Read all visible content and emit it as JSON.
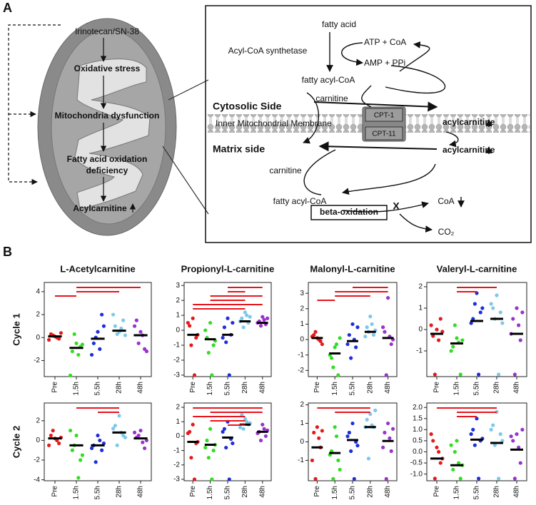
{
  "panel_labels": {
    "a": "A",
    "b": "B"
  },
  "diagram": {
    "left": {
      "drug": "Irinotecan/SN-38",
      "stress": "Oxidative stress",
      "dysfunction": "Mitochondria dysfunction",
      "fao_1": "Fatty acid oxidation",
      "fao_2": "deficiency",
      "acyl": "Acylcarnitine"
    },
    "right": {
      "fatty_acid": "fatty acid",
      "synthetase": "Acyl-CoA synthetase",
      "atp": "ATP + CoA",
      "amp": "AMP + PPi",
      "fatty_acyl_coa": "fatty acyl-CoA",
      "carnitine_top": "carnitine",
      "acylcarnitine_top": "acylcarnitine",
      "cytosolic": "Cytosolic Side",
      "membrane": "Inner Mitochondrial Membrane",
      "cpt1": "CPT-1",
      "cpt11": "CPT-11",
      "matrix": "Matrix side",
      "carnitine_bottom": "carnitine",
      "acylcarnitine_bottom": "acylcarnitine",
      "fatty_acyl_coa_2": "fatty acyl-CoA",
      "coa": "CoA",
      "beta": "beta-oxidation",
      "block": "X",
      "co2": "CO₂"
    }
  },
  "chart_data": [
    {
      "type": "strip",
      "title": "L-Acetylcarnitine",
      "ylabel": "Cycle 1",
      "categories": [
        "Pre",
        "1.5h",
        "5.5h",
        "28h",
        "48h"
      ],
      "colors": [
        "#e41a1c",
        "#33dd22",
        "#1f2fd8",
        "#7ec8ea",
        "#9933cc"
      ],
      "values": [
        [
          0.1,
          0.3,
          -0.1,
          0.2,
          0,
          -0.2,
          0.4
        ],
        [
          -0.5,
          -1.2,
          -0.8,
          0.3,
          -1.5,
          -3.3,
          -0.6
        ],
        [
          0.5,
          -0.5,
          2,
          0,
          -1,
          -1.5,
          1
        ],
        [
          0.5,
          1,
          1.5,
          0.3,
          0.8,
          2,
          0.2
        ],
        [
          0.5,
          1.5,
          -1,
          -0.5,
          0.2,
          1,
          -1.2
        ]
      ],
      "medians": [
        0.1,
        -0.9,
        -0.1,
        0.6,
        0.2
      ],
      "ylim": [
        -3.4,
        4.8
      ],
      "yticks": [
        -2,
        0,
        2,
        4
      ],
      "significance": [
        [
          "1.5h",
          "48h"
        ],
        [
          "1.5h",
          "28h"
        ],
        [
          "Pre",
          "1.5h"
        ]
      ],
      "significance_color": "#e8141c",
      "median_color": "#000000"
    },
    {
      "type": "strip",
      "title": "Propionyl-L-carnitine",
      "categories": [
        "Pre",
        "1.5h",
        "5.5h",
        "28h",
        "48h"
      ],
      "colors": [
        "#e41a1c",
        "#33dd22",
        "#1f2fd8",
        "#7ec8ea",
        "#9933cc"
      ],
      "values": [
        [
          0.8,
          0.3,
          -0.5,
          -1,
          -3,
          0.5,
          -0.3
        ],
        [
          0.5,
          -0.5,
          -1,
          -1.5,
          -3,
          0,
          -0.7
        ],
        [
          0.8,
          0.2,
          -0.3,
          -0.8,
          -3,
          -0.5,
          0.5
        ],
        [
          1.2,
          0.8,
          0.5,
          0.2,
          1,
          0.6,
          0.9
        ],
        [
          0.9,
          0.6,
          0.4,
          0.3,
          0.7,
          0.5,
          0.8
        ]
      ],
      "medians": [
        -0.3,
        -0.6,
        -0.3,
        0.6,
        0.5
      ],
      "ylim": [
        -3.1,
        3.2
      ],
      "yticks": [
        -3,
        -2,
        -1,
        0,
        1,
        2,
        3
      ],
      "significance": [
        [
          "5.5h",
          "48h"
        ],
        [
          "5.5h",
          "28h"
        ],
        [
          "1.5h",
          "48h"
        ],
        [
          "1.5h",
          "28h"
        ],
        [
          "Pre",
          "48h"
        ],
        [
          "Pre",
          "28h"
        ]
      ],
      "significance_color": "#e8141c",
      "median_color": "#000000"
    },
    {
      "type": "strip",
      "title": "Malonyl-L-carnitine",
      "categories": [
        "Pre",
        "1.5h",
        "5.5h",
        "28h",
        "48h"
      ],
      "colors": [
        "#e41a1c",
        "#33dd22",
        "#1f2fd8",
        "#7ec8ea",
        "#9933cc"
      ],
      "values": [
        [
          0.1,
          0.3,
          -0.1,
          0.5,
          0,
          0.2,
          -0.3
        ],
        [
          -0.5,
          -1.2,
          -2.3,
          -1.8,
          -0.3,
          -1,
          0.1
        ],
        [
          1,
          0.3,
          -0.5,
          -1.2,
          0,
          -0.3,
          0.8
        ],
        [
          1.5,
          0.8,
          0.3,
          0.5,
          1,
          0.2,
          0.6
        ],
        [
          2.7,
          0.5,
          -0.3,
          -2.3,
          0.2,
          0.8,
          0
        ]
      ],
      "medians": [
        0.1,
        -0.9,
        -0.1,
        0.5,
        0.1
      ],
      "ylim": [
        -2.4,
        3.7
      ],
      "yticks": [
        -2,
        -1,
        0,
        1,
        2,
        3
      ],
      "significance": [
        [
          "5.5h",
          "48h"
        ],
        [
          "1.5h",
          "48h"
        ],
        [
          "1.5h",
          "28h"
        ],
        [
          "Pre",
          "1.5h"
        ]
      ],
      "significance_color": "#e8141c",
      "median_color": "#000000"
    },
    {
      "type": "strip",
      "title": "Valeryl-L-carnitine",
      "categories": [
        "Pre",
        "1.5h",
        "5.5h",
        "28h",
        "48h"
      ],
      "colors": [
        "#e41a1c",
        "#33dd22",
        "#1f2fd8",
        "#7ec8ea",
        "#9933cc"
      ],
      "values": [
        [
          0,
          -0.3,
          0.5,
          -2.1,
          -0.5,
          0.2,
          -0.1
        ],
        [
          -0.4,
          -0.8,
          -2.1,
          0.2,
          -0.6,
          -1,
          -0.5
        ],
        [
          1.7,
          0.5,
          0.8,
          1.2,
          -2.1,
          0.3,
          1
        ],
        [
          1.6,
          1,
          0.8,
          0.5,
          -2.1,
          1.2,
          0.3
        ],
        [
          1,
          0.5,
          -0.5,
          -2.1,
          0.2,
          -0.2,
          0.8
        ]
      ],
      "medians": [
        -0.2,
        -0.65,
        0.4,
        0.5,
        -0.2
      ],
      "ylim": [
        -2.2,
        2.2
      ],
      "yticks": [
        -1,
        0,
        1,
        2
      ],
      "significance": [
        [
          "1.5h",
          "28h"
        ],
        [
          "1.5h",
          "5.5h"
        ]
      ],
      "significance_color": "#e8141c",
      "median_color": "#000000"
    },
    {
      "type": "strip",
      "title": "",
      "ylabel": "Cycle 2",
      "categories": [
        "Pre",
        "1.5h",
        "5.5h",
        "28h",
        "48h"
      ],
      "colors": [
        "#e41a1c",
        "#33dd22",
        "#1f2fd8",
        "#7ec8ea",
        "#9933cc"
      ],
      "values": [
        [
          0.2,
          0.5,
          -0.3,
          1,
          0,
          -0.5,
          0.3
        ],
        [
          0.5,
          -1,
          -2,
          -0.5,
          -3.8,
          1,
          -1.5
        ],
        [
          0.5,
          -0.5,
          -1,
          -2.2,
          0,
          -0.8,
          -0.3
        ],
        [
          2.5,
          1.5,
          0.5,
          -0.5,
          0.8,
          1.2,
          0.3
        ],
        [
          1,
          0.3,
          -0.8,
          0.5,
          -0.2,
          0.8,
          0
        ]
      ],
      "medians": [
        0.2,
        -0.5,
        -0.5,
        0.8,
        0.2
      ],
      "ylim": [
        -4.1,
        3.8
      ],
      "yticks": [
        -4,
        -2,
        0,
        2
      ],
      "significance": [
        [
          "1.5h",
          "28h"
        ],
        [
          "5.5h",
          "28h"
        ]
      ],
      "significance_color": "#e8141c",
      "median_color": "#000000"
    },
    {
      "type": "strip",
      "categories": [
        "Pre",
        "1.5h",
        "5.5h",
        "28h",
        "48h"
      ],
      "colors": [
        "#e41a1c",
        "#33dd22",
        "#1f2fd8",
        "#7ec8ea",
        "#9933cc"
      ],
      "values": [
        [
          0.8,
          0.3,
          -0.5,
          -1.5,
          -3,
          0.2,
          -0.4
        ],
        [
          0.5,
          -0.3,
          -1,
          -1.5,
          -3,
          -0.8,
          -0.6
        ],
        [
          1,
          0.5,
          -0.2,
          -0.8,
          -3,
          0.3,
          -0.5
        ],
        [
          1.2,
          1.5,
          0.8,
          0.5,
          1,
          0.6,
          0.9
        ],
        [
          0.8,
          0.3,
          0,
          -0.3,
          0.5,
          0.2,
          0.4
        ]
      ],
      "medians": [
        -0.4,
        -0.6,
        -0.1,
        0.8,
        0.3
      ],
      "ylim": [
        -3.1,
        2.3
      ],
      "yticks": [
        -3,
        -2,
        -1,
        0,
        1,
        2
      ],
      "significance": [
        [
          "Pre",
          "48h"
        ],
        [
          "1.5h",
          "48h"
        ],
        [
          "Pre",
          "28h"
        ],
        [
          "1.5h",
          "28h"
        ],
        [
          "5.5h",
          "28h"
        ]
      ],
      "significance_color": "#e8141c",
      "median_color": "#000000"
    },
    {
      "type": "strip",
      "categories": [
        "Pre",
        "1.5h",
        "5.5h",
        "28h",
        "48h"
      ],
      "colors": [
        "#e41a1c",
        "#33dd22",
        "#1f2fd8",
        "#7ec8ea",
        "#9933cc"
      ],
      "values": [
        [
          0.8,
          0.5,
          -0.3,
          -2,
          0.2,
          -1,
          0.6
        ],
        [
          0.8,
          -0.5,
          -1,
          -2,
          0.3,
          -0.7,
          -1.5
        ],
        [
          1,
          0.5,
          0,
          -0.5,
          -2,
          0.3,
          -0.2
        ],
        [
          1.5,
          1.2,
          0.8,
          -0.9,
          0.9,
          0.8,
          1.7
        ],
        [
          1,
          0.5,
          -0.5,
          -2,
          0.2,
          -0.3,
          0.7
        ]
      ],
      "medians": [
        -0.3,
        -0.6,
        0.1,
        0.8,
        0.05
      ],
      "ylim": [
        -2.1,
        2.1
      ],
      "yticks": [
        -1,
        0,
        1,
        2
      ],
      "significance": [
        [
          "Pre",
          "28h"
        ],
        [
          "1.5h",
          "28h"
        ]
      ],
      "significance_color": "#e8141c",
      "median_color": "#000000"
    },
    {
      "type": "strip",
      "categories": [
        "Pre",
        "1.5h",
        "5.5h",
        "28h",
        "48h"
      ],
      "colors": [
        "#e41a1c",
        "#33dd22",
        "#1f2fd8",
        "#7ec8ea",
        "#9933cc"
      ],
      "values": [
        [
          0.2,
          0.5,
          -0.5,
          -1.2,
          0,
          0.8,
          -0.3
        ],
        [
          0.5,
          -0.8,
          -1.2,
          0,
          -0.5,
          0.3,
          -0.6
        ],
        [
          1.5,
          1,
          0.5,
          0.3,
          -1.2,
          0.8,
          0.6
        ],
        [
          1.8,
          1.2,
          0.8,
          0.3,
          -1.2,
          1,
          0.5
        ],
        [
          0.8,
          0.5,
          -0.5,
          -1.2,
          0.2,
          0.7,
          1
        ]
      ],
      "medians": [
        -0.3,
        -0.6,
        0.55,
        0.4,
        0.1
      ],
      "ylim": [
        -1.3,
        2.2
      ],
      "yticks": [
        {
          "value": -1,
          "label": "-1.0"
        },
        {
          "value": -0.5,
          "label": "-0.5"
        },
        {
          "value": 0,
          "label": "0.0"
        },
        {
          "value": 0.5,
          "label": "0.5"
        },
        {
          "value": 1,
          "label": "1.0"
        },
        {
          "value": 1.5,
          "label": "1.5"
        },
        {
          "value": 2,
          "label": "2.0"
        }
      ],
      "significance": [
        [
          "Pre",
          "28h"
        ],
        [
          "1.5h",
          "28h"
        ],
        [
          "1.5h",
          "5.5h"
        ]
      ],
      "significance_color": "#e8141c",
      "median_color": "#000000"
    }
  ]
}
